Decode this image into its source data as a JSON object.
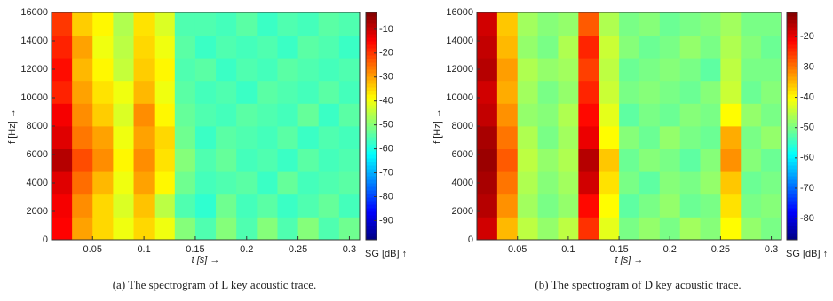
{
  "chart_data": [
    {
      "type": "heatmap",
      "caption": "(a)  The spectrogram of L key acoustic trace.",
      "xlabel": "t [s] →",
      "ylabel": "f [Hz] →",
      "colorbar_label": "SG [dB] ↑",
      "colormap": "jet",
      "x": [
        0.02,
        0.04,
        0.06,
        0.08,
        0.1,
        0.12,
        0.14,
        0.16,
        0.18,
        0.2,
        0.22,
        0.24,
        0.26,
        0.28,
        0.3
      ],
      "y": [
        800,
        2400,
        4000,
        5600,
        7200,
        8800,
        10400,
        12000,
        13600,
        15200
      ],
      "values": [
        [
          -15,
          -30,
          -35,
          -40,
          -35,
          -40,
          -50,
          -55,
          -50,
          -55,
          -50,
          -55,
          -50,
          -55,
          -52
        ],
        [
          -14,
          -28,
          -35,
          -42,
          -33,
          -45,
          -55,
          -58,
          -52,
          -56,
          -54,
          -57,
          -55,
          -53,
          -56
        ],
        [
          -12,
          -25,
          -32,
          -40,
          -30,
          -38,
          -52,
          -56,
          -55,
          -54,
          -57,
          -53,
          -56,
          -55,
          -54
        ],
        [
          -8,
          -22,
          -28,
          -38,
          -28,
          -36,
          -50,
          -55,
          -53,
          -56,
          -55,
          -57,
          -54,
          -56,
          -55
        ],
        [
          -12,
          -26,
          -30,
          -40,
          -30,
          -35,
          -52,
          -57,
          -54,
          -55,
          -56,
          -54,
          -57,
          -55,
          -56
        ],
        [
          -14,
          -28,
          -34,
          -42,
          -28,
          -38,
          -53,
          -55,
          -56,
          -54,
          -55,
          -56,
          -53,
          -57,
          -54
        ],
        [
          -18,
          -30,
          -36,
          -40,
          -32,
          -40,
          -54,
          -56,
          -55,
          -57,
          -54,
          -55,
          -56,
          -54,
          -56
        ],
        [
          -16,
          -32,
          -38,
          -44,
          -34,
          -38,
          -55,
          -54,
          -57,
          -55,
          -56,
          -54,
          -55,
          -56,
          -55
        ],
        [
          -18,
          -30,
          -40,
          -45,
          -35,
          -40,
          -54,
          -57,
          -55,
          -56,
          -55,
          -57,
          -54,
          -55,
          -57
        ],
        [
          -20,
          -34,
          -38,
          -46,
          -36,
          -42,
          -55,
          -55,
          -56,
          -54,
          -57,
          -55,
          -56,
          -54,
          -55
        ]
      ],
      "xlim": [
        0.01,
        0.31
      ],
      "xticks": [
        0.05,
        0.1,
        0.15,
        0.2,
        0.25,
        0.3
      ],
      "ylim": [
        0,
        16000
      ],
      "yticks": [
        0,
        2000,
        4000,
        6000,
        8000,
        10000,
        12000,
        14000,
        16000
      ],
      "clim": [
        -98,
        -3
      ],
      "cticks": [
        -10,
        -20,
        -30,
        -40,
        -50,
        -60,
        -70,
        -80,
        -90
      ]
    },
    {
      "type": "heatmap",
      "caption": "(b)  The spectrogram of D key acoustic trace.",
      "xlabel": "t [s] →",
      "ylabel": "f [Hz] →",
      "colorbar_label": "SG [dB] ↑",
      "colormap": "jet",
      "x": [
        0.02,
        0.04,
        0.06,
        0.08,
        0.1,
        0.12,
        0.14,
        0.16,
        0.18,
        0.2,
        0.22,
        0.24,
        0.26,
        0.28,
        0.3
      ],
      "y": [
        800,
        2400,
        4000,
        5600,
        7200,
        8800,
        10400,
        12000,
        13600,
        15200
      ],
      "values": [
        [
          -18,
          -35,
          -45,
          -48,
          -45,
          -25,
          -42,
          -50,
          -48,
          -50,
          -47,
          -49,
          -40,
          -48,
          -50
        ],
        [
          -16,
          -32,
          -47,
          -50,
          -48,
          -22,
          -40,
          -52,
          -50,
          -48,
          -51,
          -50,
          -38,
          -50,
          -49
        ],
        [
          -15,
          -30,
          -46,
          -49,
          -47,
          -18,
          -38,
          -50,
          -52,
          -49,
          -50,
          -48,
          -36,
          -51,
          -50
        ],
        [
          -14,
          -28,
          -45,
          -48,
          -46,
          -16,
          -36,
          -51,
          -49,
          -50,
          -52,
          -49,
          -32,
          -49,
          -51
        ],
        [
          -15,
          -30,
          -46,
          -50,
          -47,
          -20,
          -40,
          -49,
          -51,
          -48,
          -50,
          -51,
          -34,
          -50,
          -48
        ],
        [
          -17,
          -32,
          -48,
          -49,
          -46,
          -22,
          -42,
          -52,
          -50,
          -51,
          -49,
          -50,
          -40,
          -48,
          -50
        ],
        [
          -18,
          -34,
          -47,
          -50,
          -48,
          -24,
          -44,
          -50,
          -49,
          -50,
          -51,
          -49,
          -44,
          -51,
          -49
        ],
        [
          -16,
          -33,
          -46,
          -48,
          -47,
          -26,
          -45,
          -51,
          -50,
          -49,
          -50,
          -52,
          -45,
          -50,
          -50
        ],
        [
          -17,
          -35,
          -48,
          -50,
          -46,
          -24,
          -44,
          -49,
          -51,
          -50,
          -48,
          -50,
          -46,
          -49,
          -51
        ],
        [
          -18,
          -36,
          -47,
          -49,
          -48,
          -28,
          -46,
          -50,
          -49,
          -51,
          -50,
          -49,
          -47,
          -50,
          -50
        ]
      ],
      "xlim": [
        0.01,
        0.31
      ],
      "xticks": [
        0.05,
        0.1,
        0.15,
        0.2,
        0.25,
        0.3
      ],
      "ylim": [
        0,
        16000
      ],
      "yticks": [
        0,
        2000,
        4000,
        6000,
        8000,
        10000,
        12000,
        14000,
        16000
      ],
      "clim": [
        -87,
        -12
      ],
      "cticks": [
        -20,
        -30,
        -40,
        -50,
        -60,
        -70,
        -80
      ]
    }
  ]
}
